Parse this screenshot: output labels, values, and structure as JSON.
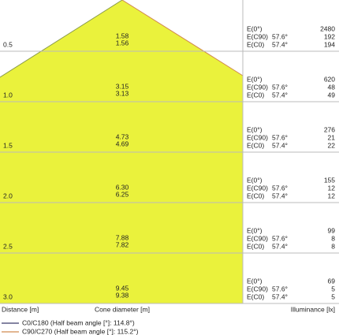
{
  "rows": [
    {
      "distance": "0.5",
      "diameter_c0": "1.58",
      "diameter_c90": "1.56",
      "e0_label": "E(0°)",
      "e0": "2480",
      "ec90_label": "E(C90)",
      "ec90_angle": "57.6°",
      "ec90": "192",
      "ec0_label": "E(C0)",
      "ec0_angle": "57.4°",
      "ec0": "194"
    },
    {
      "distance": "1.0",
      "diameter_c0": "3.15",
      "diameter_c90": "3.13",
      "e0_label": "E(0°)",
      "e0": "620",
      "ec90_label": "E(C90)",
      "ec90_angle": "57.6°",
      "ec90": "48",
      "ec0_label": "E(C0)",
      "ec0_angle": "57.4°",
      "ec0": "49"
    },
    {
      "distance": "1.5",
      "diameter_c0": "4.73",
      "diameter_c90": "4.69",
      "e0_label": "E(0°)",
      "e0": "276",
      "ec90_label": "E(C90)",
      "ec90_angle": "57.6°",
      "ec90": "21",
      "ec0_label": "E(C0)",
      "ec0_angle": "57.4°",
      "ec0": "22"
    },
    {
      "distance": "2.0",
      "diameter_c0": "6.30",
      "diameter_c90": "6.25",
      "e0_label": "E(0°)",
      "e0": "155",
      "ec90_label": "E(C90)",
      "ec90_angle": "57.6°",
      "ec90": "12",
      "ec0_label": "E(C0)",
      "ec0_angle": "57.4°",
      "ec0": "12"
    },
    {
      "distance": "2.5",
      "diameter_c0": "7.88",
      "diameter_c90": "7.82",
      "e0_label": "E(0°)",
      "e0": "99",
      "ec90_label": "E(C90)",
      "ec90_angle": "57.6°",
      "ec90": "8",
      "ec0_label": "E(C0)",
      "ec0_angle": "57.4°",
      "ec0": "8"
    },
    {
      "distance": "3.0",
      "diameter_c0": "9.45",
      "diameter_c90": "9.38",
      "e0_label": "E(0°)",
      "e0": "69",
      "ec90_label": "E(C90)",
      "ec90_angle": "57.6°",
      "ec90": "5",
      "ec0_label": "E(C0)",
      "ec0_angle": "57.4°",
      "ec0": "5"
    }
  ],
  "footer": {
    "distance": "Distance [m]",
    "diameter": "Cone diameter [m]",
    "illuminance": "Illuminance [lx]"
  },
  "legend": [
    "C0/C180 (Half beam angle [°]: 114.8°)",
    "C90/C270 (Half beam angle [°]: 115.2°)"
  ]
}
